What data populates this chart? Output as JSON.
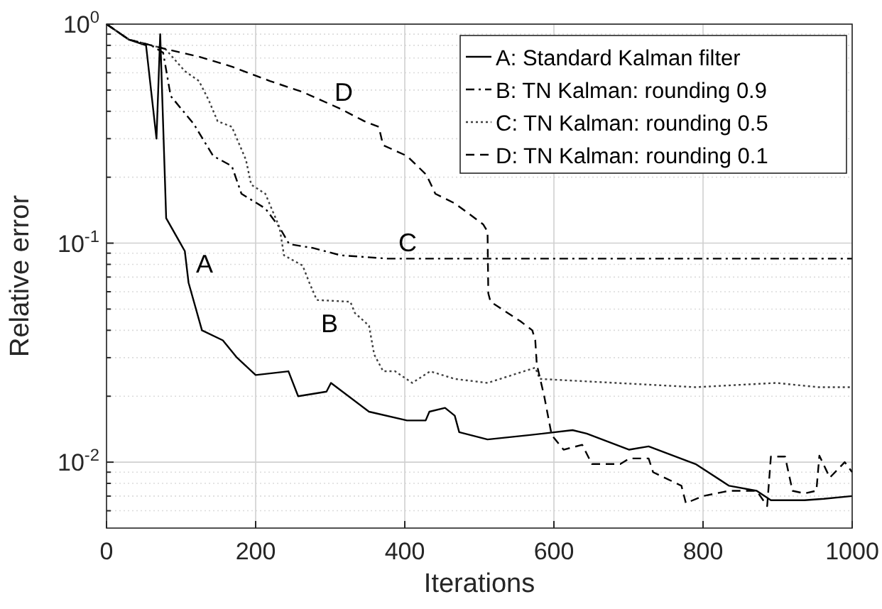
{
  "chart_data": {
    "type": "line",
    "xlabel": "Iterations",
    "ylabel": "Relative error",
    "log": "y",
    "grid": true,
    "legend": "top right",
    "xlim": [
      0,
      1000
    ],
    "xticks": [
      0,
      200,
      400,
      600,
      800,
      1000
    ],
    "ylim": [
      0.005,
      1
    ],
    "yticks": [
      {
        "value": 0.006,
        "label": null
      },
      {
        "value": 0.007,
        "label": null
      },
      {
        "value": 0.008,
        "label": null
      },
      {
        "value": 0.009,
        "label": null
      },
      {
        "value": 0.01,
        "label": "10$^{-2}$"
      },
      {
        "value": 0.02,
        "label": null
      },
      {
        "value": 0.03,
        "label": null
      },
      {
        "value": 0.04,
        "label": null
      },
      {
        "value": 0.05,
        "label": null
      },
      {
        "value": 0.06,
        "label": null
      },
      {
        "value": 0.07,
        "label": null
      },
      {
        "value": 0.08,
        "label": null
      },
      {
        "value": 0.09,
        "label": null
      },
      {
        "value": 0.1,
        "label": "10$^{-1}$"
      },
      {
        "value": 0.2,
        "label": null
      },
      {
        "value": 0.3,
        "label": null
      },
      {
        "value": 0.4,
        "label": null
      },
      {
        "value": 0.5,
        "label": null
      },
      {
        "value": 0.6,
        "label": null
      },
      {
        "value": 0.7,
        "label": null
      },
      {
        "value": 0.8,
        "label": null
      },
      {
        "value": 0.9,
        "label": null
      },
      {
        "value": 1,
        "label": "10$^{0}$"
      }
    ],
    "annotations": [
      "A",
      "B",
      "C",
      "D"
    ],
    "series": [
      {
        "name": "A: Standard Kalman filter",
        "color": "#000000",
        "line_style": "solid",
        "x": [
          0,
          30,
          53,
          67,
          72,
          80,
          105,
          110,
          128,
          156,
          175,
          200,
          244,
          257,
          295,
          301,
          352,
          403,
          428,
          433,
          454,
          467,
          473,
          511,
          568,
          625,
          644,
          701,
          727,
          790,
          835,
          872,
          891,
          936,
          962,
          1000
        ],
        "values": [
          1,
          0.85,
          0.8,
          0.3,
          0.9,
          0.13,
          0.092,
          0.066,
          0.04,
          0.036,
          0.03,
          0.025,
          0.026,
          0.02,
          0.021,
          0.023,
          0.017,
          0.0155,
          0.0155,
          0.017,
          0.0177,
          0.0163,
          0.0137,
          0.0127,
          0.0133,
          0.014,
          0.0135,
          0.0114,
          0.0118,
          0.0098,
          0.0078,
          0.0074,
          0.0067,
          0.0067,
          0.0068,
          0.007
        ]
      },
      {
        "name": "B: TN Kalman: rounding 0.9",
        "color": "#000000",
        "line_style": "dashdot",
        "x": [
          0,
          30,
          60,
          76,
          86,
          117,
          143,
          168,
          181,
          213,
          232,
          245,
          277,
          314,
          377,
          500,
          700,
          850,
          1000
        ],
        "values": [
          1,
          0.85,
          0.8,
          0.74,
          0.47,
          0.35,
          0.25,
          0.225,
          0.168,
          0.144,
          0.118,
          0.099,
          0.095,
          0.088,
          0.085,
          0.085,
          0.085,
          0.085,
          0.085
        ]
      },
      {
        "name": "C: TN Kalman: rounding 0.5",
        "color": "#404040",
        "line_style": "dotted",
        "x": [
          0,
          30,
          60,
          79,
          105,
          124,
          137,
          149,
          168,
          187,
          194,
          213,
          232,
          238,
          263,
          272,
          282,
          327,
          333,
          352,
          359,
          371,
          387,
          410,
          434,
          467,
          511,
          575,
          581,
          683,
          790,
          898,
          955,
          1000
        ],
        "values": [
          1,
          0.85,
          0.8,
          0.77,
          0.61,
          0.55,
          0.45,
          0.36,
          0.34,
          0.24,
          0.185,
          0.168,
          0.118,
          0.088,
          0.079,
          0.066,
          0.055,
          0.054,
          0.048,
          0.042,
          0.031,
          0.026,
          0.026,
          0.023,
          0.026,
          0.024,
          0.023,
          0.027,
          0.024,
          0.023,
          0.022,
          0.023,
          0.022,
          0.022
        ]
      },
      {
        "name": "D: TN Kalman: rounding 0.1",
        "color": "#000000",
        "line_style": "dashed",
        "x": [
          0,
          30,
          60,
          79,
          124,
          168,
          219,
          263,
          314,
          346,
          365,
          371,
          403,
          429,
          441,
          467,
          505,
          511,
          512,
          515,
          555,
          571,
          575,
          577,
          587,
          597,
          613,
          638,
          651,
          689,
          701,
          727,
          733,
          771,
          777,
          800,
          835,
          872,
          886,
          891,
          910,
          920,
          936,
          952,
          956,
          970,
          990,
          1000
        ],
        "values": [
          1,
          0.85,
          0.8,
          0.77,
          0.71,
          0.64,
          0.55,
          0.49,
          0.41,
          0.36,
          0.34,
          0.28,
          0.25,
          0.205,
          0.168,
          0.152,
          0.122,
          0.113,
          0.059,
          0.054,
          0.044,
          0.04,
          0.036,
          0.028,
          0.02,
          0.0133,
          0.0114,
          0.012,
          0.0098,
          0.0098,
          0.0104,
          0.0104,
          0.009,
          0.0078,
          0.0065,
          0.007,
          0.0074,
          0.0074,
          0.0063,
          0.0106,
          0.0106,
          0.0074,
          0.0072,
          0.0074,
          0.0107,
          0.0085,
          0.01,
          0.009
        ]
      }
    ]
  }
}
